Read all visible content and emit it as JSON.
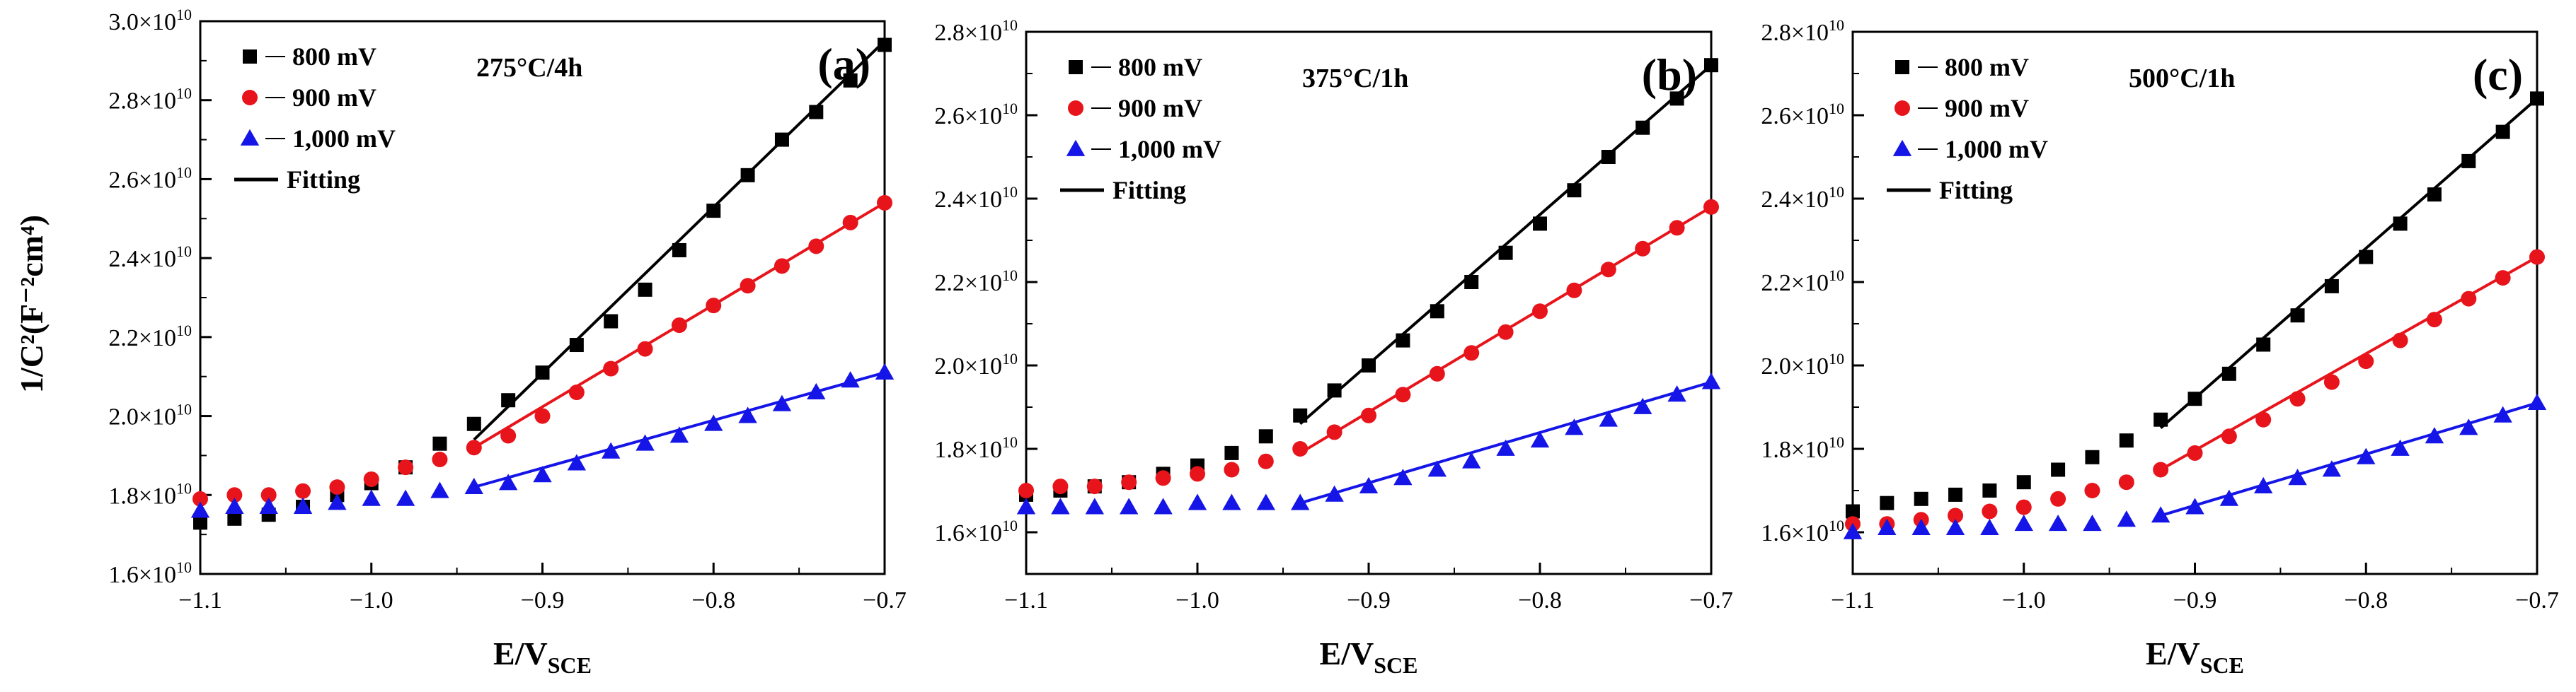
{
  "figure": {
    "ylabel": "1/C²(F⁻²cm⁴)",
    "xlabel_main": "E/V",
    "xlabel_sub": "SCE",
    "x_tick_labels": [
      "−1.1",
      "−1.0",
      "−0.9",
      "−0.8",
      "−0.7"
    ],
    "exponent_base": "×10",
    "exponent_power": "10"
  },
  "colors": {
    "800 mV": "#000000",
    "900 mV": "#e8141b",
    "1,000 mV": "#1515e8",
    "fit_800": "#000000",
    "fit_900": "#e8141b",
    "fit_1000": "#1515e8"
  },
  "chart_data": [
    {
      "type": "scatter",
      "panel": "(a)",
      "title": "275°C/4h",
      "xlabel": "E/VSCE",
      "ylabel": "1/C²(F⁻²cm⁴)",
      "xlim": [
        -1.1,
        -0.7
      ],
      "ylim": [
        16000000000.0,
        30000000000.0
      ],
      "y_ticks": [
        1.6,
        1.8,
        2.0,
        2.2,
        2.4,
        2.6,
        2.8,
        3.0
      ],
      "y_tick_labels": [
        "1.6",
        "1.8",
        "2.0",
        "2.2",
        "2.4",
        "2.6",
        "2.8",
        "3.0"
      ],
      "legend": [
        "800 mV",
        "900 mV",
        "1,000 mV",
        "Fitting"
      ],
      "series": [
        {
          "name": "800 mV",
          "marker": "square",
          "x": [
            -1.1,
            -1.08,
            -1.06,
            -1.04,
            -1.02,
            -1.0,
            -0.98,
            -0.96,
            -0.94,
            -0.92,
            -0.9,
            -0.88,
            -0.86,
            -0.84,
            -0.82,
            -0.8,
            -0.78,
            -0.76,
            -0.74,
            -0.72,
            -0.7
          ],
          "y": [
            1.73,
            1.74,
            1.75,
            1.77,
            1.8,
            1.83,
            1.87,
            1.93,
            1.98,
            2.04,
            2.11,
            2.18,
            2.24,
            2.32,
            2.42,
            2.52,
            2.61,
            2.7,
            2.77,
            2.85,
            2.94
          ]
        },
        {
          "name": "900 mV",
          "marker": "circle",
          "x": [
            -1.1,
            -1.08,
            -1.06,
            -1.04,
            -1.02,
            -1.0,
            -0.98,
            -0.96,
            -0.94,
            -0.92,
            -0.9,
            -0.88,
            -0.86,
            -0.84,
            -0.82,
            -0.8,
            -0.78,
            -0.76,
            -0.74,
            -0.72,
            -0.7
          ],
          "y": [
            1.79,
            1.8,
            1.8,
            1.81,
            1.82,
            1.84,
            1.87,
            1.89,
            1.92,
            1.95,
            2.0,
            2.06,
            2.12,
            2.17,
            2.23,
            2.28,
            2.33,
            2.38,
            2.43,
            2.49,
            2.54
          ]
        },
        {
          "name": "1,000 mV",
          "marker": "triangle",
          "x": [
            -1.1,
            -1.08,
            -1.06,
            -1.04,
            -1.02,
            -1.0,
            -0.98,
            -0.96,
            -0.94,
            -0.92,
            -0.9,
            -0.88,
            -0.86,
            -0.84,
            -0.82,
            -0.8,
            -0.78,
            -0.76,
            -0.74,
            -0.72,
            -0.7
          ],
          "y": [
            1.76,
            1.77,
            1.77,
            1.77,
            1.78,
            1.79,
            1.79,
            1.81,
            1.82,
            1.83,
            1.85,
            1.88,
            1.91,
            1.93,
            1.95,
            1.98,
            2.0,
            2.03,
            2.06,
            2.09,
            2.11
          ]
        }
      ],
      "fits": [
        {
          "name": "fit_800",
          "x": [
            -0.94,
            -0.7
          ],
          "y": [
            1.94,
            2.95
          ]
        },
        {
          "name": "fit_900",
          "x": [
            -0.94,
            -0.7
          ],
          "y": [
            1.92,
            2.54
          ]
        },
        {
          "name": "fit_1000",
          "x": [
            -0.94,
            -0.7
          ],
          "y": [
            1.82,
            2.11
          ]
        }
      ]
    },
    {
      "type": "scatter",
      "panel": "(b)",
      "title": "375°C/1h",
      "xlabel": "E/VSCE",
      "ylabel": "",
      "xlim": [
        -1.1,
        -0.7
      ],
      "ylim": [
        15000000000.0,
        28000000000.0
      ],
      "y_ticks": [
        1.6,
        1.8,
        2.0,
        2.2,
        2.4,
        2.6,
        2.8
      ],
      "y_tick_labels": [
        "1.6",
        "1.8",
        "2.0",
        "2.2",
        "2.4",
        "2.6",
        "2.8"
      ],
      "legend": [
        "800 mV",
        "900 mV",
        "1,000 mV",
        "Fitting"
      ],
      "series": [
        {
          "name": "800 mV",
          "marker": "square",
          "x": [
            -1.1,
            -1.08,
            -1.06,
            -1.04,
            -1.02,
            -1.0,
            -0.98,
            -0.96,
            -0.94,
            -0.92,
            -0.9,
            -0.88,
            -0.86,
            -0.84,
            -0.82,
            -0.8,
            -0.78,
            -0.76,
            -0.74,
            -0.72,
            -0.7
          ],
          "y": [
            1.69,
            1.7,
            1.71,
            1.72,
            1.74,
            1.76,
            1.79,
            1.83,
            1.88,
            1.94,
            2.0,
            2.06,
            2.13,
            2.2,
            2.27,
            2.34,
            2.42,
            2.5,
            2.57,
            2.64,
            2.72
          ]
        },
        {
          "name": "900 mV",
          "marker": "circle",
          "x": [
            -1.1,
            -1.08,
            -1.06,
            -1.04,
            -1.02,
            -1.0,
            -0.98,
            -0.96,
            -0.94,
            -0.92,
            -0.9,
            -0.88,
            -0.86,
            -0.84,
            -0.82,
            -0.8,
            -0.78,
            -0.76,
            -0.74,
            -0.72,
            -0.7
          ],
          "y": [
            1.7,
            1.71,
            1.71,
            1.72,
            1.73,
            1.74,
            1.75,
            1.77,
            1.8,
            1.84,
            1.88,
            1.93,
            1.98,
            2.03,
            2.08,
            2.13,
            2.18,
            2.23,
            2.28,
            2.33,
            2.38
          ]
        },
        {
          "name": "1,000 mV",
          "marker": "triangle",
          "x": [
            -1.1,
            -1.08,
            -1.06,
            -1.04,
            -1.02,
            -1.0,
            -0.98,
            -0.96,
            -0.94,
            -0.92,
            -0.9,
            -0.88,
            -0.86,
            -0.84,
            -0.82,
            -0.8,
            -0.78,
            -0.76,
            -0.74,
            -0.72,
            -0.7
          ],
          "y": [
            1.66,
            1.66,
            1.66,
            1.66,
            1.66,
            1.67,
            1.67,
            1.67,
            1.67,
            1.69,
            1.71,
            1.73,
            1.75,
            1.77,
            1.8,
            1.82,
            1.85,
            1.87,
            1.9,
            1.93,
            1.96
          ]
        }
      ],
      "fits": [
        {
          "name": "fit_800",
          "x": [
            -0.94,
            -0.7
          ],
          "y": [
            1.86,
            2.72
          ]
        },
        {
          "name": "fit_900",
          "x": [
            -0.94,
            -0.7
          ],
          "y": [
            1.79,
            2.38
          ]
        },
        {
          "name": "fit_1000",
          "x": [
            -0.94,
            -0.7
          ],
          "y": [
            1.67,
            1.96
          ]
        }
      ]
    },
    {
      "type": "scatter",
      "panel": "(c)",
      "title": "500°C/1h",
      "xlabel": "E/VSCE",
      "ylabel": "",
      "xlim": [
        -1.1,
        -0.7
      ],
      "ylim": [
        15000000000.0,
        28000000000.0
      ],
      "y_ticks": [
        1.6,
        1.8,
        2.0,
        2.2,
        2.4,
        2.6,
        2.8
      ],
      "y_tick_labels": [
        "1.6",
        "1.8",
        "2.0",
        "2.2",
        "2.4",
        "2.6",
        "2.8"
      ],
      "legend": [
        "800 mV",
        "900 mV",
        "1,000 mV",
        "Fitting"
      ],
      "series": [
        {
          "name": "800 mV",
          "marker": "square",
          "x": [
            -1.1,
            -1.08,
            -1.06,
            -1.04,
            -1.02,
            -1.0,
            -0.98,
            -0.96,
            -0.94,
            -0.92,
            -0.9,
            -0.88,
            -0.86,
            -0.84,
            -0.82,
            -0.8,
            -0.78,
            -0.76,
            -0.74,
            -0.72,
            -0.7
          ],
          "y": [
            1.65,
            1.67,
            1.68,
            1.69,
            1.7,
            1.72,
            1.75,
            1.78,
            1.82,
            1.87,
            1.92,
            1.98,
            2.05,
            2.12,
            2.19,
            2.26,
            2.34,
            2.41,
            2.49,
            2.56,
            2.64
          ]
        },
        {
          "name": "900 mV",
          "marker": "circle",
          "x": [
            -1.1,
            -1.08,
            -1.06,
            -1.04,
            -1.02,
            -1.0,
            -0.98,
            -0.96,
            -0.94,
            -0.92,
            -0.9,
            -0.88,
            -0.86,
            -0.84,
            -0.82,
            -0.8,
            -0.78,
            -0.76,
            -0.74,
            -0.72,
            -0.7
          ],
          "y": [
            1.62,
            1.62,
            1.63,
            1.64,
            1.65,
            1.66,
            1.68,
            1.7,
            1.72,
            1.75,
            1.79,
            1.83,
            1.87,
            1.92,
            1.96,
            2.01,
            2.06,
            2.11,
            2.16,
            2.21,
            2.26
          ]
        },
        {
          "name": "1,000 mV",
          "marker": "triangle",
          "x": [
            -1.1,
            -1.08,
            -1.06,
            -1.04,
            -1.02,
            -1.0,
            -0.98,
            -0.96,
            -0.94,
            -0.92,
            -0.9,
            -0.88,
            -0.86,
            -0.84,
            -0.82,
            -0.8,
            -0.78,
            -0.76,
            -0.74,
            -0.72,
            -0.7
          ],
          "y": [
            1.6,
            1.61,
            1.61,
            1.61,
            1.61,
            1.62,
            1.62,
            1.62,
            1.63,
            1.64,
            1.66,
            1.68,
            1.71,
            1.73,
            1.75,
            1.78,
            1.8,
            1.83,
            1.85,
            1.88,
            1.91
          ]
        }
      ],
      "fits": [
        {
          "name": "fit_800",
          "x": [
            -0.92,
            -0.7
          ],
          "y": [
            1.85,
            2.64
          ]
        },
        {
          "name": "fit_900",
          "x": [
            -0.92,
            -0.7
          ],
          "y": [
            1.75,
            2.26
          ]
        },
        {
          "name": "fit_1000",
          "x": [
            -0.92,
            -0.7
          ],
          "y": [
            1.64,
            1.91
          ]
        }
      ]
    }
  ]
}
